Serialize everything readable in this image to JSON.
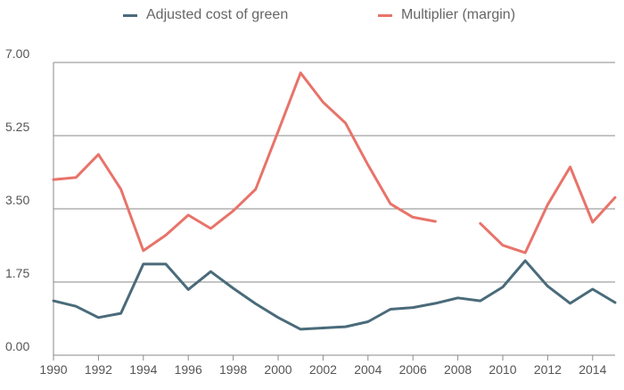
{
  "chart_data": {
    "type": "line",
    "title": "",
    "xlabel": "",
    "ylabel": "",
    "xlim": [
      1990,
      2015
    ],
    "ylim": [
      0,
      7
    ],
    "yticks": [
      "0.00",
      "1.75",
      "3.50",
      "5.25",
      "7.00"
    ],
    "ytick_values": [
      0,
      1.75,
      3.5,
      5.25,
      7
    ],
    "xticks": [
      "1990",
      "1992",
      "1994",
      "1996",
      "1998",
      "2000",
      "2002",
      "2004",
      "2006",
      "2008",
      "2010",
      "2012",
      "2014"
    ],
    "xtick_values": [
      1990,
      1992,
      1994,
      1996,
      1998,
      2000,
      2002,
      2004,
      2006,
      2008,
      2010,
      2012,
      2014
    ],
    "grid": true,
    "legend_position": "top",
    "x": [
      1990,
      1991,
      1992,
      1993,
      1994,
      1995,
      1996,
      1997,
      1998,
      1999,
      2000,
      2001,
      2002,
      2003,
      2004,
      2005,
      2006,
      2007,
      2008,
      2009,
      2010,
      2011,
      2012,
      2013,
      2014,
      2015
    ],
    "series": [
      {
        "name": "Adjusted cost of green",
        "color": "#4a6b7a",
        "values": [
          1.3,
          1.17,
          0.9,
          1.0,
          2.18,
          2.18,
          1.57,
          2.0,
          1.6,
          1.23,
          0.9,
          0.62,
          0.65,
          0.68,
          0.8,
          1.1,
          1.14,
          1.24,
          1.37,
          1.3,
          1.63,
          2.26,
          1.65,
          1.24,
          1.58,
          1.26
        ]
      },
      {
        "name": "Multiplier (margin)",
        "color": "#e8736a",
        "values": [
          4.2,
          4.25,
          4.8,
          3.97,
          2.5,
          2.87,
          3.35,
          3.03,
          3.45,
          3.97,
          5.35,
          6.75,
          6.05,
          5.55,
          4.55,
          3.62,
          3.3,
          3.2,
          null,
          3.15,
          2.63,
          2.45,
          3.6,
          4.5,
          3.18,
          3.77
        ]
      }
    ]
  }
}
